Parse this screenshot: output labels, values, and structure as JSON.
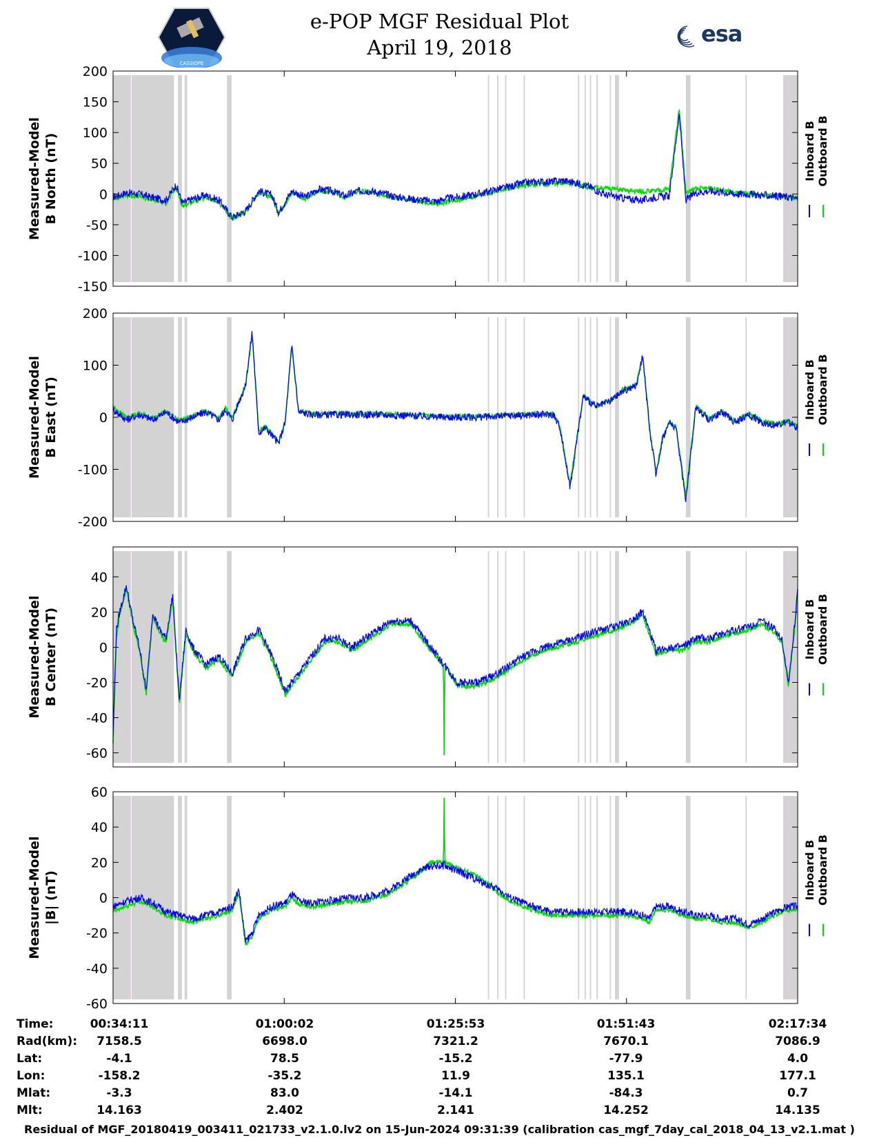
{
  "header": {
    "title_line1": "e-POP MGF Residual Plot",
    "title_line2": "April 19, 2018",
    "logo_left_text": "CASSIOPE",
    "logo_right_text": "esa"
  },
  "colors": {
    "inboard": "#0000ff",
    "outboard": "#00dd00",
    "gap_shade": "#d3d3d3",
    "gap_highlight": "#e6c8e6"
  },
  "legend": {
    "inboard": "Inboard B",
    "outboard": "Outboard B"
  },
  "chart_data": [
    {
      "type": "line",
      "ylabel": [
        "Measured-Model",
        "B North (nT)"
      ],
      "ylim": [
        -150,
        200
      ],
      "yticks": [
        -150,
        -100,
        -50,
        0,
        50,
        100,
        150,
        200
      ],
      "x_minutes_range": [
        0,
        103.383
      ],
      "x_tick_minutes": [
        0,
        25.85,
        51.7,
        77.533,
        103.383
      ],
      "series": [
        {
          "name": "Inboard B",
          "x": [
            0,
            2,
            4,
            6,
            8,
            9.5,
            10.5,
            12,
            14,
            16,
            18,
            20,
            22,
            24,
            25,
            27,
            29,
            31,
            33,
            35,
            37,
            39,
            41,
            43,
            45,
            47,
            49,
            50,
            52,
            54,
            56,
            58,
            60,
            62,
            64,
            66,
            68,
            70,
            72,
            74,
            76,
            78,
            80,
            82,
            84,
            85.5,
            86.5,
            88,
            90,
            92,
            94,
            96,
            98,
            100,
            102,
            103.38
          ],
          "y": [
            -5,
            2,
            0,
            -6,
            -10,
            15,
            -15,
            -8,
            -2,
            -10,
            -38,
            -28,
            5,
            -2,
            -30,
            5,
            -5,
            8,
            5,
            -3,
            5,
            5,
            0,
            -5,
            -8,
            -10,
            -12,
            -8,
            -5,
            -2,
            2,
            8,
            12,
            18,
            20,
            20,
            22,
            18,
            12,
            0,
            -5,
            -8,
            -10,
            -5,
            -3,
            130,
            -10,
            2,
            5,
            3,
            0,
            0,
            -2,
            -3,
            -5,
            -8
          ]
        },
        {
          "name": "Outboard B",
          "x": [
            0,
            2,
            4,
            6,
            8,
            9.5,
            10.5,
            12,
            14,
            16,
            18,
            20,
            22,
            24,
            25,
            27,
            29,
            31,
            33,
            35,
            37,
            39,
            41,
            43,
            45,
            47,
            49,
            50,
            52,
            54,
            56,
            58,
            60,
            62,
            64,
            66,
            68,
            70,
            72,
            74,
            76,
            78,
            80,
            82,
            84,
            85.5,
            86.5,
            88,
            90,
            92,
            94,
            96,
            98,
            100,
            102,
            103.38
          ],
          "y": [
            -8,
            -2,
            -4,
            -10,
            -15,
            10,
            -20,
            -12,
            -6,
            -14,
            -40,
            -30,
            2,
            -5,
            -32,
            2,
            -8,
            5,
            3,
            -5,
            4,
            4,
            -2,
            -8,
            -10,
            -14,
            -16,
            -14,
            -10,
            -5,
            0,
            5,
            10,
            14,
            16,
            16,
            18,
            16,
            10,
            10,
            8,
            5,
            4,
            5,
            8,
            140,
            2,
            8,
            10,
            6,
            2,
            0,
            -2,
            -3,
            -5,
            -8
          ]
        }
      ]
    },
    {
      "type": "line",
      "ylabel": [
        "Measured-Model",
        "B East (nT)"
      ],
      "ylim": [
        -200,
        200
      ],
      "yticks": [
        -200,
        -100,
        0,
        100,
        200
      ],
      "x_minutes_range": [
        0,
        103.383
      ],
      "x_tick_minutes": [
        0,
        25.85,
        51.7,
        77.533,
        103.383
      ],
      "series": [
        {
          "name": "Inboard B",
          "x": [
            0,
            2,
            4,
            6,
            8,
            10,
            12,
            14,
            16,
            17,
            18,
            19,
            20,
            21,
            22,
            23,
            24,
            25,
            26,
            27,
            28,
            30,
            35,
            40,
            45,
            50,
            55,
            60,
            65,
            66.5,
            67.5,
            69,
            71,
            73,
            75,
            77,
            79,
            80,
            81,
            82,
            83,
            84,
            85,
            86.5,
            88,
            90,
            92,
            94,
            96,
            98,
            100,
            102,
            103.38
          ],
          "y": [
            15,
            -5,
            5,
            -5,
            10,
            -10,
            0,
            10,
            -5,
            15,
            -5,
            30,
            60,
            165,
            -30,
            -20,
            -35,
            -50,
            -10,
            140,
            10,
            5,
            5,
            5,
            3,
            0,
            0,
            3,
            5,
            5,
            -20,
            -135,
            40,
            20,
            30,
            50,
            60,
            120,
            -20,
            -110,
            -40,
            -10,
            -20,
            -160,
            20,
            -5,
            10,
            -10,
            5,
            -10,
            -15,
            -10,
            -20
          ]
        },
        {
          "name": "Outboard B",
          "x": [
            0,
            2,
            4,
            6,
            8,
            10,
            12,
            14,
            16,
            17,
            18,
            19,
            20,
            21,
            22,
            23,
            24,
            25,
            26,
            27,
            28,
            30,
            35,
            40,
            45,
            50,
            55,
            60,
            65,
            66.5,
            67.5,
            69,
            71,
            73,
            75,
            77,
            79,
            80,
            81,
            82,
            83,
            84,
            85,
            86.5,
            88,
            90,
            92,
            94,
            96,
            98,
            100,
            102,
            103.38
          ],
          "y": [
            20,
            0,
            8,
            -2,
            12,
            -7,
            3,
            12,
            -2,
            18,
            -2,
            32,
            62,
            160,
            -27,
            -18,
            -32,
            -48,
            -8,
            138,
            12,
            7,
            7,
            7,
            5,
            2,
            2,
            5,
            7,
            7,
            -18,
            -130,
            42,
            22,
            32,
            52,
            62,
            118,
            -18,
            -105,
            -38,
            -8,
            -18,
            -150,
            22,
            -3,
            12,
            -8,
            7,
            -8,
            -13,
            -8,
            -18
          ]
        }
      ]
    },
    {
      "type": "line",
      "ylabel": [
        "Measured-Model",
        "B Center (nT)"
      ],
      "ylim": [
        -68,
        57
      ],
      "yticks": [
        -60,
        -40,
        -20,
        0,
        20,
        40
      ],
      "x_minutes_range": [
        0,
        103.383
      ],
      "x_tick_minutes": [
        0,
        25.85,
        51.7,
        77.533,
        103.383
      ],
      "series": [
        {
          "name": "Inboard B",
          "x": [
            0,
            0.5,
            1,
            2,
            3,
            4,
            5,
            6,
            7,
            8,
            9,
            10,
            11,
            12,
            14,
            16,
            18,
            20,
            22,
            24,
            26,
            28,
            30,
            32,
            34,
            36,
            38,
            40,
            42,
            45,
            48,
            50,
            52,
            55,
            58,
            60,
            62,
            65,
            68,
            70,
            72,
            74,
            76,
            78,
            80,
            82,
            84,
            86,
            88,
            90,
            92,
            94,
            96,
            98,
            100,
            101,
            102,
            103,
            103.38
          ],
          "y": [
            -50,
            10,
            20,
            35,
            15,
            0,
            -25,
            20,
            10,
            5,
            30,
            -30,
            10,
            0,
            -10,
            -5,
            -15,
            5,
            10,
            -5,
            -25,
            -15,
            -5,
            5,
            5,
            0,
            5,
            10,
            15,
            15,
            0,
            -10,
            -20,
            -20,
            -15,
            -10,
            -5,
            0,
            3,
            5,
            8,
            10,
            12,
            15,
            20,
            -2,
            0,
            0,
            5,
            5,
            8,
            10,
            12,
            15,
            10,
            5,
            -20,
            15,
            35
          ]
        },
        {
          "name": "Outboard B",
          "x": [
            0,
            0.5,
            1,
            2,
            3,
            4,
            5,
            6,
            7,
            8,
            9,
            10,
            11,
            12,
            14,
            16,
            18,
            20,
            22,
            24,
            26,
            28,
            30,
            32,
            34,
            36,
            38,
            40,
            42,
            45,
            48,
            49.9,
            50,
            50.1,
            52,
            55,
            58,
            60,
            62,
            65,
            68,
            70,
            72,
            74,
            76,
            78,
            80,
            82,
            84,
            86,
            88,
            90,
            92,
            94,
            96,
            98,
            100,
            101,
            102,
            103,
            103.38
          ],
          "y": [
            -55,
            5,
            18,
            33,
            13,
            -2,
            -27,
            18,
            8,
            3,
            28,
            -32,
            8,
            -2,
            -12,
            -7,
            -17,
            3,
            8,
            -7,
            -27,
            -17,
            -7,
            3,
            3,
            -2,
            3,
            8,
            13,
            13,
            -2,
            -10,
            -66,
            -10,
            -22,
            -22,
            -17,
            -12,
            -7,
            -2,
            1,
            3,
            6,
            8,
            10,
            13,
            18,
            -4,
            -2,
            -2,
            3,
            3,
            6,
            8,
            10,
            13,
            8,
            3,
            -22,
            13,
            33
          ]
        }
      ]
    },
    {
      "type": "line",
      "ylabel": [
        "Measured-Model",
        "|B| (nT)"
      ],
      "ylim": [
        -60,
        60
      ],
      "yticks": [
        -60,
        -40,
        -20,
        0,
        20,
        40,
        60
      ],
      "x_minutes_range": [
        0,
        103.383
      ],
      "x_tick_minutes": [
        0,
        25.85,
        51.7,
        77.533,
        103.383
      ],
      "series": [
        {
          "name": "Inboard B",
          "x": [
            0,
            2,
            4,
            6,
            8,
            10,
            12,
            14,
            16,
            18,
            19,
            20,
            21,
            22,
            24,
            26,
            27,
            28,
            30,
            32,
            34,
            36,
            38,
            40,
            42,
            44,
            46,
            48,
            49.9,
            50,
            50.1,
            52,
            54,
            56,
            58,
            60,
            62,
            64,
            66,
            68,
            70,
            72,
            74,
            76,
            78,
            80,
            81,
            82,
            84,
            86,
            88,
            90,
            92,
            94,
            96,
            98,
            100,
            102,
            103.38
          ],
          "y": [
            -5,
            -2,
            0,
            -3,
            -8,
            -10,
            -12,
            -10,
            -8,
            -5,
            5,
            -25,
            -20,
            -10,
            -5,
            -3,
            2,
            -2,
            -3,
            -2,
            -1,
            0,
            0,
            2,
            5,
            10,
            15,
            18,
            18,
            20,
            18,
            15,
            12,
            8,
            5,
            0,
            -3,
            -6,
            -8,
            -8,
            -8,
            -8,
            -8,
            -8,
            -8,
            -10,
            -12,
            -5,
            -5,
            -8,
            -10,
            -10,
            -12,
            -12,
            -15,
            -12,
            -8,
            -5,
            -5
          ]
        },
        {
          "name": "Outboard B",
          "x": [
            0,
            2,
            4,
            6,
            8,
            10,
            12,
            14,
            16,
            18,
            19,
            20,
            21,
            22,
            24,
            26,
            27,
            28,
            30,
            32,
            34,
            36,
            38,
            40,
            42,
            44,
            46,
            48,
            49.9,
            50,
            50.1,
            52,
            54,
            56,
            58,
            60,
            62,
            64,
            66,
            68,
            70,
            72,
            74,
            76,
            78,
            80,
            81,
            82,
            84,
            86,
            88,
            90,
            92,
            94,
            96,
            98,
            100,
            102,
            103.38
          ],
          "y": [
            -8,
            -5,
            -2,
            -5,
            -10,
            -12,
            -14,
            -12,
            -10,
            -7,
            3,
            -27,
            -22,
            -12,
            -7,
            -5,
            0,
            -4,
            -5,
            -4,
            -3,
            -2,
            -2,
            0,
            3,
            8,
            13,
            20,
            20,
            58,
            20,
            17,
            14,
            10,
            3,
            -2,
            -5,
            -8,
            -10,
            -10,
            -10,
            -10,
            -10,
            -10,
            -10,
            -12,
            -14,
            -7,
            -7,
            -10,
            -12,
            -12,
            -14,
            -14,
            -17,
            -14,
            -10,
            -7,
            -7
          ]
        }
      ]
    }
  ],
  "gaps_minutes": [
    [
      0,
      2.5
    ],
    [
      2.8,
      9.2
    ],
    [
      9.8,
      10.4
    ],
    [
      10.8,
      11.2
    ],
    [
      17.2,
      17.9
    ],
    [
      56.6,
      56.8
    ],
    [
      58.0,
      58.2
    ],
    [
      59.2,
      59.4
    ],
    [
      62.0,
      62.2
    ],
    [
      70.2,
      70.4
    ],
    [
      71.2,
      71.4
    ],
    [
      72.0,
      72.2
    ],
    [
      73.0,
      73.2
    ],
    [
      75.0,
      75.2
    ],
    [
      75.8,
      76.4
    ],
    [
      86.5,
      87.2
    ],
    [
      95.5,
      95.7
    ],
    [
      101.2,
      103.38
    ]
  ],
  "gaps_highlight_minutes": [
    [
      2.5,
      2.7
    ],
    [
      102.0,
      102.2
    ]
  ],
  "info_table": {
    "row_labels": [
      "Time:",
      "Rad(km):",
      "Lat:",
      "Lon:",
      "Mlat:",
      "Mlt:"
    ],
    "columns": [
      [
        "00:34:11",
        "7158.5",
        "-4.1",
        "-158.2",
        "-3.3",
        "14.163"
      ],
      [
        "01:00:02",
        "6698.0",
        "78.5",
        "-35.2",
        "83.0",
        "2.402"
      ],
      [
        "01:25:53",
        "7321.2",
        "-15.2",
        "11.9",
        "-14.1",
        "2.141"
      ],
      [
        "01:51:43",
        "7670.1",
        "-77.9",
        "135.1",
        "-84.3",
        "14.252"
      ],
      [
        "02:17:34",
        "7086.9",
        "4.0",
        "177.1",
        "0.7",
        "14.135"
      ]
    ]
  },
  "footer": "Residual of MGF_20180419_003411_021733_v2.1.0.lv2 on 15-Jun-2024 09:31:39 (calibration cas_mgf_7day_cal_2018_04_13_v2.1.mat )"
}
